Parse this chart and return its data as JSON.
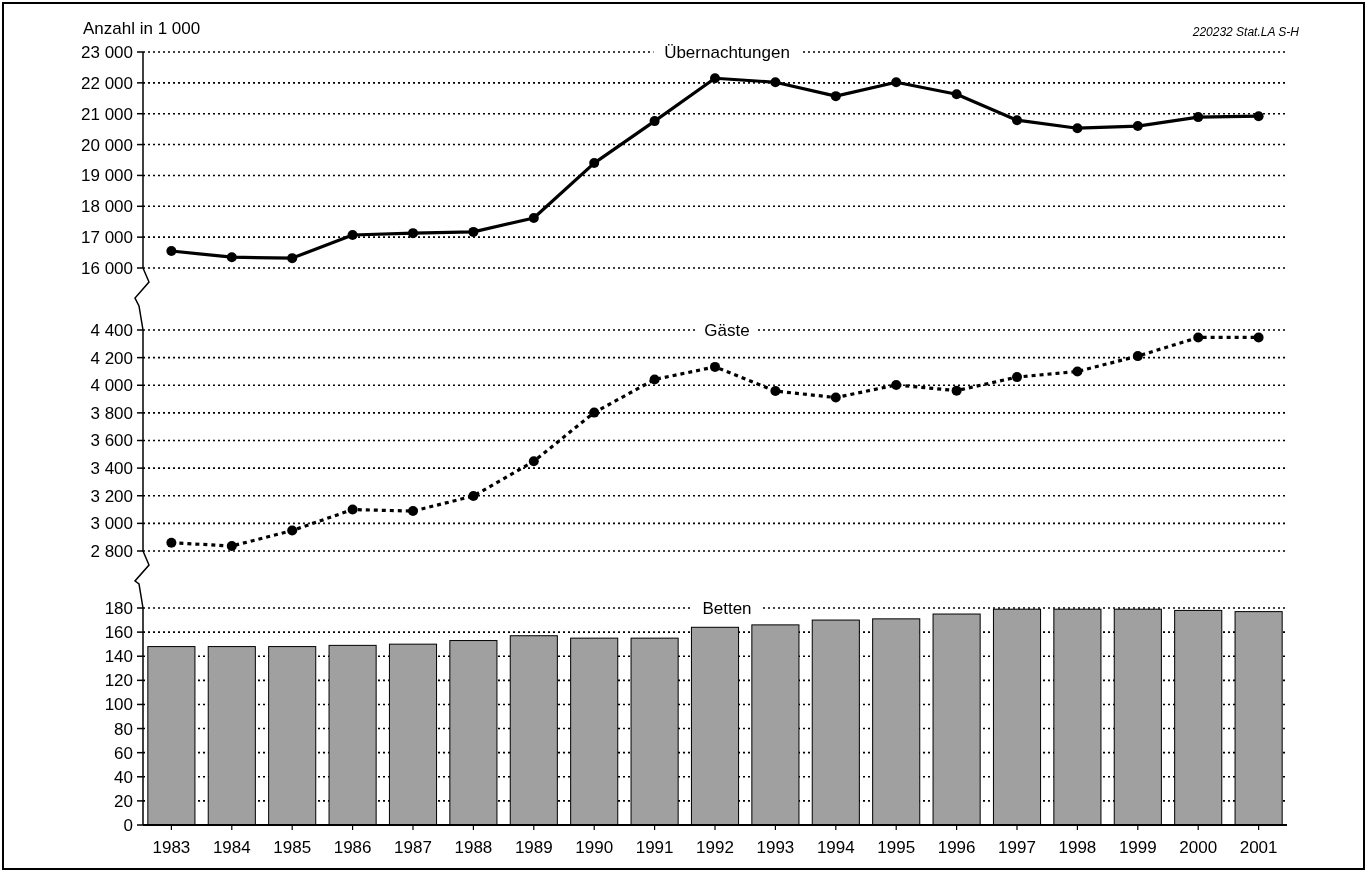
{
  "chart_data": [
    {
      "type": "line",
      "title": "Übernachtungen",
      "ylabel": "Anzahl in 1 000",
      "annotations": [
        "220232 Stat.LA S-H"
      ],
      "categories": [
        "1983",
        "1984",
        "1985",
        "1986",
        "1987",
        "1988",
        "1989",
        "1990",
        "1991",
        "1992",
        "1993",
        "1994",
        "1995",
        "1996",
        "1997",
        "1998",
        "1999",
        "2000",
        "2001"
      ],
      "series": [
        {
          "color": "#000000",
          "values": [
            16550,
            16350,
            16320,
            17070,
            17130,
            17170,
            17620,
            19400,
            20760,
            22150,
            22020,
            21570,
            22020,
            21630,
            20790,
            20530,
            20600,
            20890,
            20920
          ]
        }
      ],
      "ylim": [
        16000,
        23000
      ],
      "yticks": [
        {
          "value": 16000,
          "label": "16 000"
        },
        {
          "value": 17000,
          "label": "17 000"
        },
        {
          "value": 18000,
          "label": "18 000"
        },
        {
          "value": 19000,
          "label": "19 000"
        },
        {
          "value": 20000,
          "label": "20 000"
        },
        {
          "value": 21000,
          "label": "21 000"
        },
        {
          "value": 22000,
          "label": "22 000"
        },
        {
          "value": 23000,
          "label": "23 000"
        }
      ],
      "grid": "y",
      "marker": "circle",
      "line_style": "solid",
      "tick_labels": "y"
    },
    {
      "type": "line",
      "title": "Gäste",
      "categories": [
        "1983",
        "1984",
        "1985",
        "1986",
        "1987",
        "1988",
        "1989",
        "1990",
        "1991",
        "1992",
        "1993",
        "1994",
        "1995",
        "1996",
        "1997",
        "1998",
        "1999",
        "2000",
        "2001"
      ],
      "series": [
        {
          "color": "#000000",
          "values": [
            2860,
            2836,
            2948,
            3100,
            3089,
            3198,
            3450,
            3802,
            4042,
            4133,
            3958,
            3911,
            4002,
            3961,
            4059,
            4100,
            4211,
            4346,
            4346
          ]
        }
      ],
      "ylim": [
        2800,
        4400
      ],
      "yticks": [
        {
          "value": 2800,
          "label": "2 800"
        },
        {
          "value": 3000,
          "label": "3 000"
        },
        {
          "value": 3200,
          "label": "3 200"
        },
        {
          "value": 3400,
          "label": "3 400"
        },
        {
          "value": 3600,
          "label": "3 600"
        },
        {
          "value": 3800,
          "label": "3 800"
        },
        {
          "value": 4000,
          "label": "4 000"
        },
        {
          "value": 4200,
          "label": "4 200"
        },
        {
          "value": 4400,
          "label": "4 400"
        }
      ],
      "grid": "y",
      "marker": "circle",
      "line_style": "dotted",
      "tick_labels": "y"
    },
    {
      "type": "bar",
      "title": "Betten",
      "categories": [
        "1983",
        "1984",
        "1985",
        "1986",
        "1987",
        "1988",
        "1989",
        "1990",
        "1991",
        "1992",
        "1993",
        "1994",
        "1995",
        "1996",
        "1997",
        "1998",
        "1999",
        "2000",
        "2001"
      ],
      "series": [
        {
          "color": "#a0a0a0",
          "values": [
            148,
            148,
            148,
            149,
            150,
            153,
            157,
            155,
            155,
            164,
            166,
            170,
            171,
            175,
            179,
            179,
            179,
            178,
            177
          ]
        }
      ],
      "ylim": [
        0,
        180
      ],
      "yticks": [
        0,
        20,
        40,
        60,
        80,
        100,
        120,
        140,
        160,
        180
      ],
      "grid": "y"
    }
  ]
}
